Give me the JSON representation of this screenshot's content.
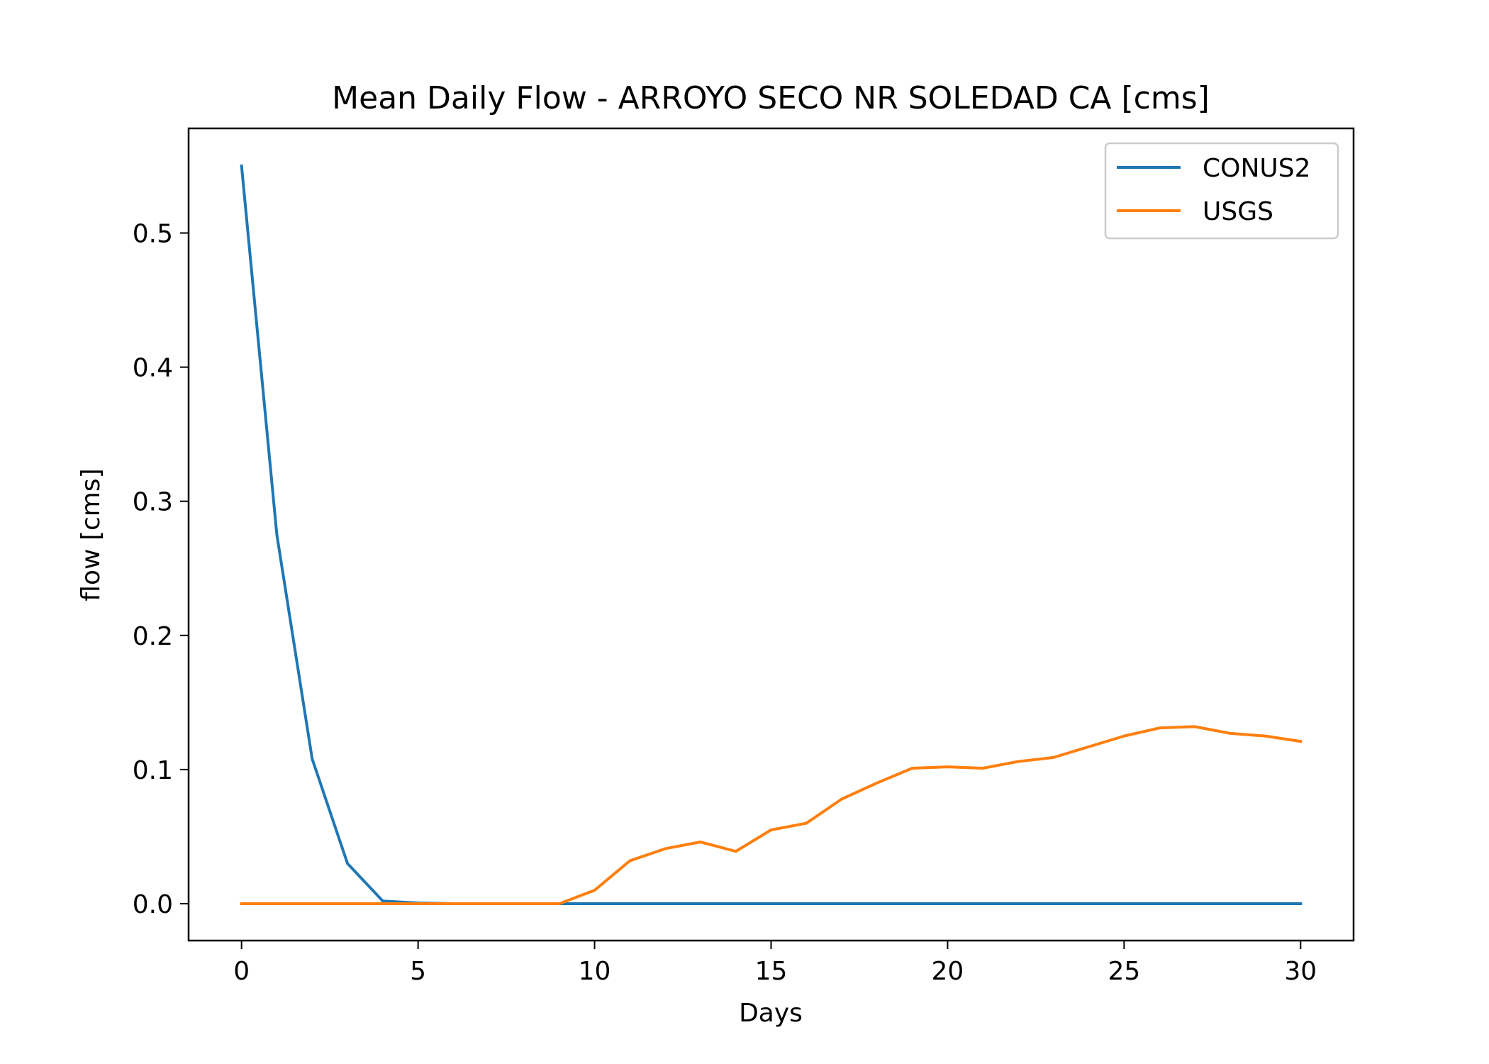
{
  "chart_data": {
    "type": "line",
    "title": "Mean Daily Flow - ARROYO SECO NR SOLEDAD CA [cms]",
    "xlabel": "Days",
    "ylabel": "flow [cms]",
    "xlim": [
      -1.5,
      31.5
    ],
    "ylim": [
      -0.0275,
      0.578
    ],
    "xticks": [
      0,
      5,
      10,
      15,
      20,
      25,
      30
    ],
    "xtick_labels": [
      "0",
      "5",
      "10",
      "15",
      "20",
      "25",
      "30"
    ],
    "yticks": [
      0.0,
      0.1,
      0.2,
      0.3,
      0.4,
      0.5
    ],
    "ytick_labels": [
      "0.0",
      "0.1",
      "0.2",
      "0.3",
      "0.4",
      "0.5"
    ],
    "grid": false,
    "legend_position": "top-right",
    "x": [
      0,
      1,
      2,
      3,
      4,
      5,
      6,
      7,
      8,
      9,
      10,
      11,
      12,
      13,
      14,
      15,
      16,
      17,
      18,
      19,
      20,
      21,
      22,
      23,
      24,
      25,
      26,
      27,
      28,
      29,
      30
    ],
    "series": [
      {
        "name": "CONUS2",
        "color": "#1f77b4",
        "values": [
          0.55,
          0.275,
          0.108,
          0.03,
          0.002,
          0.0005,
          0,
          0,
          0,
          0,
          0,
          0,
          0,
          0,
          0,
          0,
          0,
          0,
          0,
          0,
          0,
          0,
          0,
          0,
          0,
          0,
          0,
          0,
          0,
          0,
          0
        ]
      },
      {
        "name": "USGS",
        "color": "#ff7f0e",
        "values": [
          0,
          0,
          0,
          0,
          0,
          0,
          0,
          0,
          0,
          0,
          0.01,
          0.032,
          0.041,
          0.046,
          0.039,
          0.055,
          0.06,
          0.078,
          0.09,
          0.101,
          0.102,
          0.101,
          0.106,
          0.109,
          0.117,
          0.125,
          0.131,
          0.132,
          0.127,
          0.125,
          0.121
        ]
      }
    ]
  }
}
